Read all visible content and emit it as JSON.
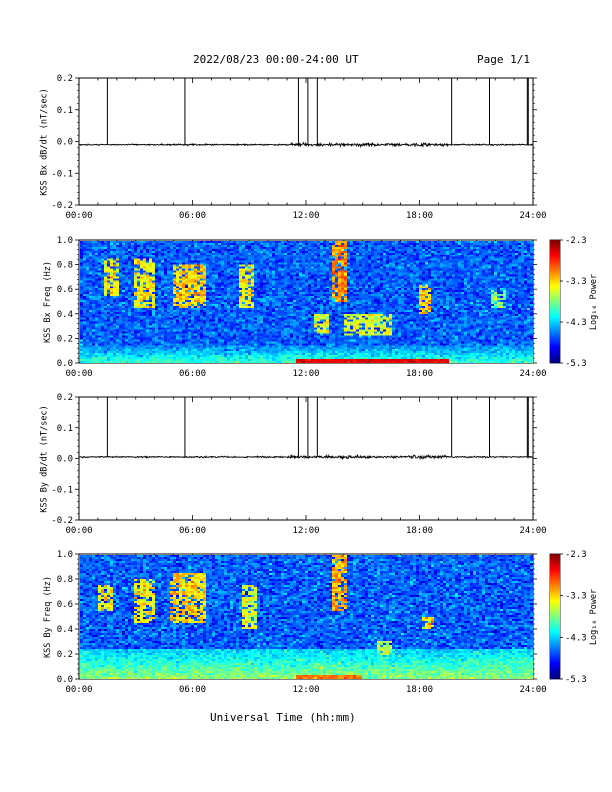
{
  "header": {
    "title": "2022/08/23  00:00-24:00 UT",
    "page": "Page 1/1"
  },
  "x_axis_label": "Universal Time (hh:mm)",
  "colorbar": {
    "label": "Log₁₀ Power",
    "ticks": [
      "-2.3",
      "-3.3",
      "-4.3",
      "-5.3"
    ]
  },
  "chart_data": [
    {
      "type": "line",
      "name": "bx-timeseries",
      "ylabel": "KSS Bx dB/dt (nT/sec)",
      "xlim": [
        0,
        24
      ],
      "ylim": [
        -0.2,
        0.2
      ],
      "xticks": [
        "00:00",
        "06:00",
        "12:00",
        "18:00",
        "24:00"
      ],
      "yticks": [
        "0.2",
        "0.1",
        "0.0",
        "-0.1",
        "-0.2"
      ],
      "baseline": -0.01,
      "spike_times_hours": [
        1.5,
        5.6,
        11.6,
        12.1,
        12.6,
        19.7,
        21.7,
        23.7,
        23.75
      ],
      "spike_peak": 0.2
    },
    {
      "type": "heatmap",
      "name": "bx-spectrogram",
      "ylabel": "KSS Bx Freq (Hz)",
      "xlim": [
        0,
        24
      ],
      "ylim": [
        0,
        1
      ],
      "zlim": [
        -5.3,
        -2.3
      ],
      "xticks": [
        "00:00",
        "06:00",
        "12:00",
        "18:00",
        "24:00"
      ],
      "yticks": [
        "1.0",
        "0.8",
        "0.6",
        "0.4",
        "0.2",
        "0.0"
      ],
      "enhancements": [
        {
          "t_start": 1.3,
          "t_end": 2.0,
          "f_low": 0.55,
          "f_high": 0.85,
          "level": -3.4
        },
        {
          "t_start": 2.9,
          "t_end": 3.9,
          "f_low": 0.45,
          "f_high": 0.85,
          "level": -3.4
        },
        {
          "t_start": 5.0,
          "t_end": 6.6,
          "f_low": 0.45,
          "f_high": 0.8,
          "level": -3.3
        },
        {
          "t_start": 8.5,
          "t_end": 9.2,
          "f_low": 0.45,
          "f_high": 0.8,
          "level": -3.4
        },
        {
          "t_start": 12.4,
          "t_end": 13.2,
          "f_low": 0.25,
          "f_high": 0.4,
          "level": -3.5
        },
        {
          "t_start": 13.3,
          "t_end": 14.2,
          "f_low": 0.5,
          "f_high": 1.0,
          "level": -3.1
        },
        {
          "t_start": 14.0,
          "t_end": 16.5,
          "f_low": 0.22,
          "f_high": 0.4,
          "level": -3.5
        },
        {
          "t_start": 18.0,
          "t_end": 18.6,
          "f_low": 0.4,
          "f_high": 0.65,
          "level": -3.3
        },
        {
          "t_start": 21.8,
          "t_end": 22.6,
          "f_low": 0.45,
          "f_high": 0.6,
          "level": -3.8
        }
      ],
      "low_freq_band": {
        "f_high": 0.15,
        "level": -4.0
      },
      "strong_band": {
        "t_start": 11.5,
        "t_end": 19.5,
        "f_high": 0.03,
        "level": -2.6
      }
    },
    {
      "type": "line",
      "name": "by-timeseries",
      "ylabel": "KSS By dB/dt (nT/sec)",
      "xlim": [
        0,
        24
      ],
      "ylim": [
        -0.2,
        0.2
      ],
      "xticks": [
        "00:00",
        "06:00",
        "12:00",
        "18:00",
        "24:00"
      ],
      "yticks": [
        "0.2",
        "0.1",
        "0.0",
        "-0.1",
        "-0.2"
      ],
      "baseline": 0.005,
      "spike_times_hours": [
        1.5,
        5.6,
        11.6,
        12.1,
        12.6,
        19.7,
        21.7,
        23.7,
        23.75
      ],
      "spike_peak": 0.2
    },
    {
      "type": "heatmap",
      "name": "by-spectrogram",
      "ylabel": "KSS By Freq (Hz)",
      "xlim": [
        0,
        24
      ],
      "ylim": [
        0,
        1
      ],
      "zlim": [
        -5.3,
        -2.3
      ],
      "xticks": [
        "00:00",
        "06:00",
        "12:00",
        "18:00",
        "24:00"
      ],
      "yticks": [
        "1.0",
        "0.8",
        "0.6",
        "0.4",
        "0.2",
        "0.0"
      ],
      "enhancements": [
        {
          "t_start": 1.0,
          "t_end": 1.8,
          "f_low": 0.55,
          "f_high": 0.75,
          "level": -3.4
        },
        {
          "t_start": 2.9,
          "t_end": 3.9,
          "f_low": 0.45,
          "f_high": 0.8,
          "level": -3.4
        },
        {
          "t_start": 4.8,
          "t_end": 6.6,
          "f_low": 0.45,
          "f_high": 0.85,
          "level": -3.3
        },
        {
          "t_start": 8.6,
          "t_end": 9.3,
          "f_low": 0.4,
          "f_high": 0.75,
          "level": -3.5
        },
        {
          "t_start": 13.4,
          "t_end": 14.2,
          "f_low": 0.55,
          "f_high": 1.0,
          "level": -3.2
        },
        {
          "t_start": 15.8,
          "t_end": 16.6,
          "f_low": 0.2,
          "f_high": 0.3,
          "level": -3.7
        },
        {
          "t_start": 18.1,
          "t_end": 18.7,
          "f_low": 0.4,
          "f_high": 0.5,
          "level": -3.3
        }
      ],
      "low_freq_band": {
        "f_high": 0.25,
        "level": -3.75
      },
      "strong_band": {
        "t_start": 11.5,
        "t_end": 15.0,
        "f_high": 0.03,
        "level": -3.0
      }
    }
  ]
}
